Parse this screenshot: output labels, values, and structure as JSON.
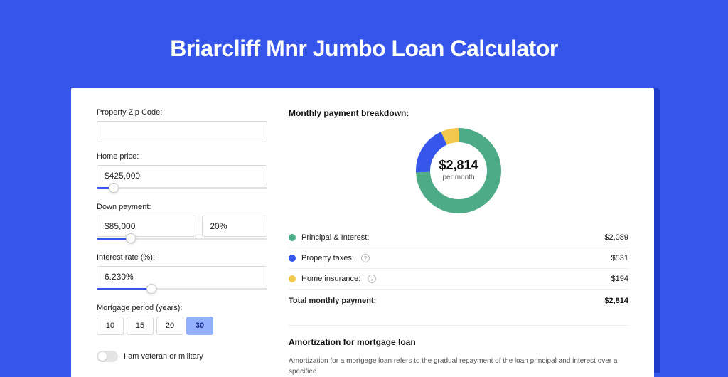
{
  "page": {
    "title": "Briarcliff Mnr Jumbo Loan Calculator",
    "background_color": "#3555eb",
    "shadow_color": "#1e3bcc",
    "card_color": "#ffffff"
  },
  "form": {
    "zip": {
      "label": "Property Zip Code:",
      "value": ""
    },
    "home_price": {
      "label": "Home price:",
      "value": "$425,000",
      "slider_pct": 10
    },
    "down_payment": {
      "label": "Down payment:",
      "amount": "$85,000",
      "percent": "20%",
      "slider_pct": 20
    },
    "interest": {
      "label": "Interest rate (%):",
      "value": "6.230%",
      "slider_pct": 32
    },
    "period": {
      "label": "Mortgage period (years):",
      "options": [
        "10",
        "15",
        "20",
        "30"
      ],
      "active_index": 3
    },
    "veteran": {
      "label": "I am veteran or military",
      "checked": false
    }
  },
  "breakdown": {
    "title": "Monthly payment breakdown:",
    "donut": {
      "center_value": "$2,814",
      "center_sub": "per month",
      "segments": [
        {
          "name": "principal",
          "color": "#4eab87",
          "fraction": 0.742
        },
        {
          "name": "taxes",
          "color": "#3555eb",
          "fraction": 0.189
        },
        {
          "name": "insurance",
          "color": "#f2c94c",
          "fraction": 0.069
        }
      ],
      "size": 120,
      "thickness": 20
    },
    "rows": [
      {
        "label": "Principal & Interest:",
        "value": "$2,089",
        "color": "#4eab87",
        "info": false
      },
      {
        "label": "Property taxes:",
        "value": "$531",
        "color": "#3555eb",
        "info": true
      },
      {
        "label": "Home insurance:",
        "value": "$194",
        "color": "#f2c94c",
        "info": true
      }
    ],
    "total": {
      "label": "Total monthly payment:",
      "value": "$2,814"
    }
  },
  "amortization": {
    "title": "Amortization for mortgage loan",
    "text": "Amortization for a mortgage loan refers to the gradual repayment of the loan principal and interest over a specified"
  }
}
